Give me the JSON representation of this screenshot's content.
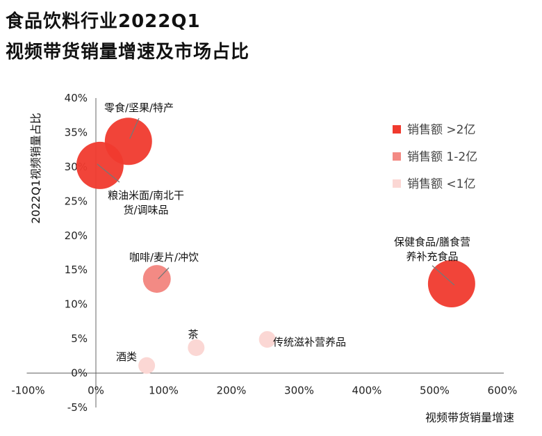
{
  "title": {
    "line1": "食品饮料行业2022Q1",
    "line2": "视频带货销量增速及市场占比"
  },
  "chart_data": {
    "type": "scatter",
    "xlabel": "视频带货销量增速",
    "ylabel": "2022Q1视频销量占比",
    "xlim": [
      -100,
      600
    ],
    "ylim": [
      -5,
      40
    ],
    "x_ticks": [
      "-100%",
      "0%",
      "100%",
      "200%",
      "300%",
      "400%",
      "500%",
      "600%"
    ],
    "y_ticks": [
      "-5%",
      "0%",
      "5%",
      "10%",
      "15%",
      "20%",
      "25%",
      "30%",
      "35%",
      "40%"
    ],
    "grid": false,
    "legend_position": "top-right",
    "legend": [
      {
        "label": "销售额 >2亿",
        "color": "#f03a2e"
      },
      {
        "label": "销售额 1-2亿",
        "color": "#f38a84"
      },
      {
        "label": "销售额 <1亿",
        "color": "#fbd7d4"
      }
    ],
    "series": [
      {
        "label": "零食/坚果/特产",
        "x": 48,
        "y": 33.7,
        "tier": 0
      },
      {
        "label": "粮油米面/南北干货/调味品",
        "x": 6,
        "y": 30.2,
        "tier": 0
      },
      {
        "label": "保健食品/膳食营养补充食品",
        "x": 525,
        "y": 13.0,
        "tier": 0
      },
      {
        "label": "咖啡/麦片/冲饮",
        "x": 90,
        "y": 13.7,
        "tier": 1
      },
      {
        "label": "茶",
        "x": 148,
        "y": 3.7,
        "tier": 2
      },
      {
        "label": "传统滋补营养品",
        "x": 253,
        "y": 4.9,
        "tier": 2
      },
      {
        "label": "酒类",
        "x": 75,
        "y": 1.1,
        "tier": 2
      }
    ]
  }
}
